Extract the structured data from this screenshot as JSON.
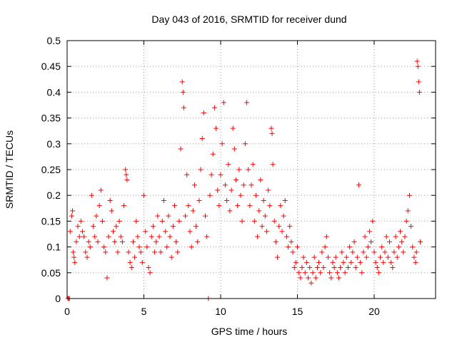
{
  "chart_data": {
    "type": "scatter",
    "title": "Day 043 of 2016, SRMTID for receiver dund",
    "xlabel": "GPS time / hours",
    "ylabel": "SRMTID / TECUs",
    "xlim": [
      0,
      24
    ],
    "ylim": [
      0,
      0.5
    ],
    "xticks": [
      "0",
      "5",
      "10",
      "15",
      "20"
    ],
    "yticks": [
      "0",
      "0.05",
      "0.1",
      "0.15",
      "0.2",
      "0.25",
      "0.3",
      "0.35",
      "0.4",
      "0.45",
      "0.5"
    ],
    "grid": true,
    "marker": "+",
    "color": "#ff0000",
    "series": [
      {
        "name": "SRMTID",
        "points": [
          [
            0.05,
            0.0
          ],
          [
            0.1,
            0.0
          ],
          [
            0.15,
            0.0
          ],
          [
            0.2,
            0.13
          ],
          [
            0.3,
            0.16
          ],
          [
            0.35,
            0.17
          ],
          [
            0.4,
            0.09
          ],
          [
            0.45,
            0.08
          ],
          [
            0.5,
            0.07
          ],
          [
            0.6,
            0.11
          ],
          [
            0.7,
            0.14
          ],
          [
            0.8,
            0.12
          ],
          [
            0.9,
            0.15
          ],
          [
            1.0,
            0.13
          ],
          [
            1.1,
            0.12
          ],
          [
            1.2,
            0.09
          ],
          [
            1.3,
            0.08
          ],
          [
            1.4,
            0.11
          ],
          [
            1.5,
            0.1
          ],
          [
            1.6,
            0.2
          ],
          [
            1.7,
            0.14
          ],
          [
            1.8,
            0.12
          ],
          [
            1.9,
            0.16
          ],
          [
            2.0,
            0.11
          ],
          [
            2.1,
            0.18
          ],
          [
            2.2,
            0.21
          ],
          [
            2.3,
            0.15
          ],
          [
            2.4,
            0.1
          ],
          [
            2.5,
            0.09
          ],
          [
            2.6,
            0.04
          ],
          [
            2.7,
            0.12
          ],
          [
            2.8,
            0.19
          ],
          [
            2.9,
            0.17
          ],
          [
            3.0,
            0.13
          ],
          [
            3.1,
            0.11
          ],
          [
            3.2,
            0.14
          ],
          [
            3.3,
            0.09
          ],
          [
            3.4,
            0.15
          ],
          [
            3.5,
            0.12
          ],
          [
            3.6,
            0.11
          ],
          [
            3.7,
            0.18
          ],
          [
            3.8,
            0.25
          ],
          [
            3.85,
            0.24
          ],
          [
            3.9,
            0.23
          ],
          [
            4.0,
            0.09
          ],
          [
            4.1,
            0.07
          ],
          [
            4.2,
            0.06
          ],
          [
            4.3,
            0.11
          ],
          [
            4.4,
            0.08
          ],
          [
            4.5,
            0.15
          ],
          [
            4.6,
            0.12
          ],
          [
            4.7,
            0.1
          ],
          [
            4.8,
            0.09
          ],
          [
            4.9,
            0.07
          ],
          [
            5.0,
            0.2
          ],
          [
            5.1,
            0.13
          ],
          [
            5.2,
            0.1
          ],
          [
            5.3,
            0.06
          ],
          [
            5.4,
            0.05
          ],
          [
            5.5,
            0.12
          ],
          [
            5.6,
            0.14
          ],
          [
            5.7,
            0.09
          ],
          [
            5.8,
            0.11
          ],
          [
            5.9,
            0.16
          ],
          [
            6.0,
            0.12
          ],
          [
            6.1,
            0.09
          ],
          [
            6.2,
            0.15
          ],
          [
            6.3,
            0.19
          ],
          [
            6.4,
            0.13
          ],
          [
            6.5,
            0.1
          ],
          [
            6.6,
            0.16
          ],
          [
            6.7,
            0.12
          ],
          [
            6.8,
            0.08
          ],
          [
            6.9,
            0.14
          ],
          [
            7.0,
            0.18
          ],
          [
            7.1,
            0.11
          ],
          [
            7.2,
            0.09
          ],
          [
            7.3,
            0.15
          ],
          [
            7.4,
            0.29
          ],
          [
            7.5,
            0.42
          ],
          [
            7.55,
            0.4
          ],
          [
            7.6,
            0.37
          ],
          [
            7.7,
            0.16
          ],
          [
            7.8,
            0.24
          ],
          [
            7.9,
            0.18
          ],
          [
            8.0,
            0.13
          ],
          [
            8.1,
            0.1
          ],
          [
            8.2,
            0.17
          ],
          [
            8.3,
            0.22
          ],
          [
            8.4,
            0.14
          ],
          [
            8.5,
            0.11
          ],
          [
            8.6,
            0.19
          ],
          [
            8.7,
            0.25
          ],
          [
            8.8,
            0.31
          ],
          [
            8.9,
            0.36
          ],
          [
            9.0,
            0.16
          ],
          [
            9.1,
            0.12
          ],
          [
            9.2,
            0.0
          ],
          [
            9.3,
            0.2
          ],
          [
            9.4,
            0.24
          ],
          [
            9.5,
            0.28
          ],
          [
            9.6,
            0.37
          ],
          [
            9.7,
            0.33
          ],
          [
            9.8,
            0.21
          ],
          [
            9.9,
            0.18
          ],
          [
            10.0,
            0.24
          ],
          [
            10.1,
            0.3
          ],
          [
            10.2,
            0.38
          ],
          [
            10.3,
            0.22
          ],
          [
            10.4,
            0.19
          ],
          [
            10.5,
            0.26
          ],
          [
            10.6,
            0.17
          ],
          [
            10.7,
            0.21
          ],
          [
            10.8,
            0.33
          ],
          [
            10.9,
            0.29
          ],
          [
            11.0,
            0.23
          ],
          [
            11.1,
            0.18
          ],
          [
            11.2,
            0.25
          ],
          [
            11.3,
            0.2
          ],
          [
            11.4,
            0.15
          ],
          [
            11.5,
            0.22
          ],
          [
            11.6,
            0.3
          ],
          [
            11.7,
            0.38
          ],
          [
            11.8,
            0.25
          ],
          [
            11.9,
            0.18
          ],
          [
            12.0,
            0.22
          ],
          [
            12.1,
            0.26
          ],
          [
            12.2,
            0.15
          ],
          [
            12.3,
            0.2
          ],
          [
            12.4,
            0.12
          ],
          [
            12.5,
            0.17
          ],
          [
            12.6,
            0.23
          ],
          [
            12.7,
            0.14
          ],
          [
            12.8,
            0.19
          ],
          [
            12.9,
            0.16
          ],
          [
            13.0,
            0.13
          ],
          [
            13.1,
            0.21
          ],
          [
            13.2,
            0.18
          ],
          [
            13.3,
            0.33
          ],
          [
            13.35,
            0.32
          ],
          [
            13.4,
            0.26
          ],
          [
            13.5,
            0.15
          ],
          [
            13.6,
            0.11
          ],
          [
            13.7,
            0.08
          ],
          [
            13.8,
            0.14
          ],
          [
            13.9,
            0.18
          ],
          [
            14.0,
            0.13
          ],
          [
            14.1,
            0.16
          ],
          [
            14.2,
            0.19
          ],
          [
            14.3,
            0.12
          ],
          [
            14.4,
            0.1
          ],
          [
            14.5,
            0.14
          ],
          [
            14.6,
            0.11
          ],
          [
            14.7,
            0.09
          ],
          [
            14.8,
            0.06
          ],
          [
            14.9,
            0.07
          ],
          [
            15.0,
            0.1
          ],
          [
            15.1,
            0.05
          ],
          [
            15.2,
            0.04
          ],
          [
            15.3,
            0.06
          ],
          [
            15.4,
            0.08
          ],
          [
            15.5,
            0.05
          ],
          [
            15.6,
            0.07
          ],
          [
            15.7,
            0.04
          ],
          [
            15.8,
            0.06
          ],
          [
            15.9,
            0.03
          ],
          [
            16.0,
            0.05
          ],
          [
            16.1,
            0.08
          ],
          [
            16.2,
            0.04
          ],
          [
            16.3,
            0.06
          ],
          [
            16.4,
            0.07
          ],
          [
            16.5,
            0.05
          ],
          [
            16.6,
            0.09
          ],
          [
            16.7,
            0.06
          ],
          [
            16.8,
            0.1
          ],
          [
            16.9,
            0.12
          ],
          [
            17.0,
            0.08
          ],
          [
            17.1,
            0.05
          ],
          [
            17.2,
            0.04
          ],
          [
            17.3,
            0.07
          ],
          [
            17.4,
            0.06
          ],
          [
            17.5,
            0.08
          ],
          [
            17.6,
            0.05
          ],
          [
            17.7,
            0.04
          ],
          [
            17.8,
            0.06
          ],
          [
            17.9,
            0.09
          ],
          [
            18.0,
            0.07
          ],
          [
            18.1,
            0.05
          ],
          [
            18.2,
            0.08
          ],
          [
            18.3,
            0.06
          ],
          [
            18.4,
            0.1
          ],
          [
            18.5,
            0.07
          ],
          [
            18.6,
            0.09
          ],
          [
            18.7,
            0.11
          ],
          [
            18.8,
            0.06
          ],
          [
            18.9,
            0.08
          ],
          [
            19.0,
            0.22
          ],
          [
            19.1,
            0.07
          ],
          [
            19.2,
            0.05
          ],
          [
            19.3,
            0.09
          ],
          [
            19.4,
            0.12
          ],
          [
            19.5,
            0.08
          ],
          [
            19.6,
            0.1
          ],
          [
            19.7,
            0.13
          ],
          [
            19.8,
            0.11
          ],
          [
            19.9,
            0.15
          ],
          [
            20.0,
            0.09
          ],
          [
            20.1,
            0.07
          ],
          [
            20.2,
            0.06
          ],
          [
            20.3,
            0.05
          ],
          [
            20.4,
            0.08
          ],
          [
            20.5,
            0.1
          ],
          [
            20.6,
            0.07
          ],
          [
            20.7,
            0.09
          ],
          [
            20.8,
            0.12
          ],
          [
            20.9,
            0.08
          ],
          [
            21.0,
            0.11
          ],
          [
            21.1,
            0.07
          ],
          [
            21.2,
            0.06
          ],
          [
            21.3,
            0.09
          ],
          [
            21.4,
            0.12
          ],
          [
            21.5,
            0.08
          ],
          [
            21.6,
            0.1
          ],
          [
            21.7,
            0.13
          ],
          [
            21.8,
            0.11
          ],
          [
            21.9,
            0.09
          ],
          [
            22.0,
            0.12
          ],
          [
            22.1,
            0.15
          ],
          [
            22.2,
            0.17
          ],
          [
            22.3,
            0.2
          ],
          [
            22.4,
            0.14
          ],
          [
            22.5,
            0.1
          ],
          [
            22.6,
            0.08
          ],
          [
            22.7,
            0.07
          ],
          [
            22.8,
            0.46
          ],
          [
            22.85,
            0.45
          ],
          [
            22.9,
            0.42
          ],
          [
            22.95,
            0.4
          ],
          [
            23.0,
            0.11
          ],
          [
            22.75,
            0.09
          ]
        ]
      }
    ]
  }
}
